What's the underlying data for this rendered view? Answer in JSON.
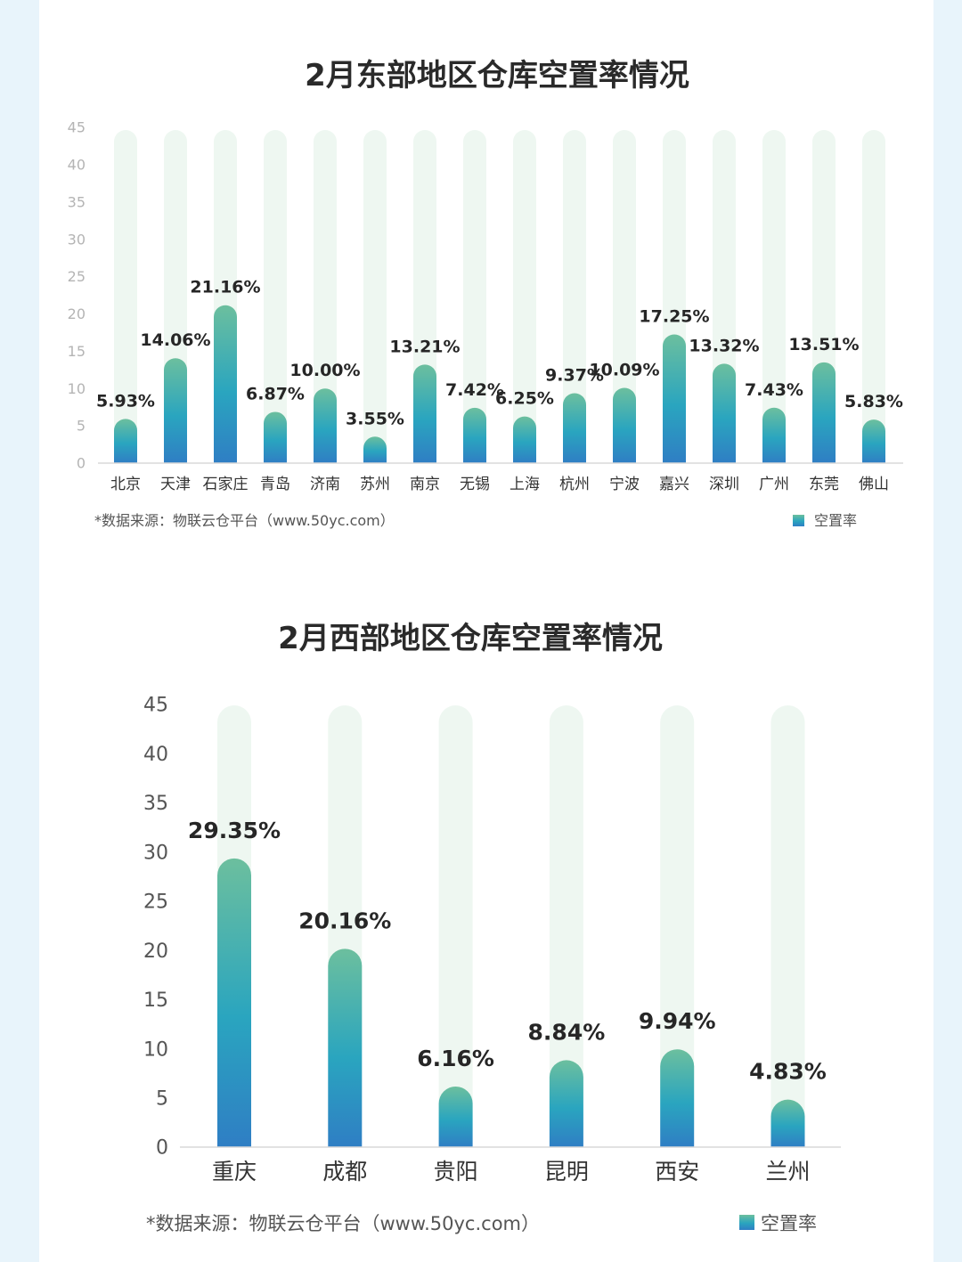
{
  "chart_data": [
    {
      "type": "bar",
      "title": "2月东部地区仓库空置率情况",
      "categories": [
        "北京",
        "天津",
        "石家庄",
        "青岛",
        "济南",
        "苏州",
        "南京",
        "无锡",
        "上海",
        "杭州",
        "宁波",
        "嘉兴",
        "深圳",
        "广州",
        "东莞",
        "佛山"
      ],
      "series": [
        {
          "name": "空置率",
          "values": [
            5.93,
            14.06,
            21.16,
            6.87,
            10.0,
            3.55,
            13.21,
            7.42,
            6.25,
            9.37,
            10.09,
            17.25,
            13.32,
            7.43,
            13.51,
            5.83
          ]
        }
      ],
      "data_labels": [
        "5.93%",
        "14.06%",
        "21.16%",
        "6.87%",
        "10.00%",
        "3.55%",
        "13.21%",
        "7.42%",
        "6.25%",
        "9.37%",
        "10.09%",
        "17.25%",
        "13.32%",
        "7.43%",
        "13.51%",
        "5.83%"
      ],
      "yticks": [
        "0",
        "5",
        "10",
        "15",
        "20",
        "25",
        "30",
        "35",
        "40",
        "45"
      ],
      "ylim": [
        0,
        45
      ],
      "xlabel": "",
      "ylabel": "",
      "legend": "空置率",
      "legend_position": "bottom-right",
      "source": "*数据来源：物联云仓平台（www.50yc.com）"
    },
    {
      "type": "bar",
      "title": "2月西部地区仓库空置率情况",
      "categories": [
        "重庆",
        "成都",
        "贵阳",
        "昆明",
        "西安",
        "兰州"
      ],
      "series": [
        {
          "name": "空置率",
          "values": [
            29.35,
            20.16,
            6.16,
            8.84,
            9.94,
            4.83
          ]
        }
      ],
      "data_labels": [
        "29.35%",
        "20.16%",
        "6.16%",
        "8.84%",
        "9.94%",
        "4.83%"
      ],
      "yticks": [
        "0",
        "5",
        "10",
        "15",
        "20",
        "25",
        "30",
        "35",
        "40",
        "45"
      ],
      "ylim": [
        0,
        45
      ],
      "xlabel": "",
      "ylabel": "",
      "legend": "空置率",
      "legend_position": "bottom-right",
      "source": "*数据来源：物联云仓平台（www.50yc.com）"
    }
  ],
  "colors": {
    "bar_top": "#6cbf9e",
    "bar_mid": "#2aa5bf",
    "bar_bottom": "#2f7ec4",
    "track": "#eef7f1",
    "axis": "#d8d8d8"
  }
}
